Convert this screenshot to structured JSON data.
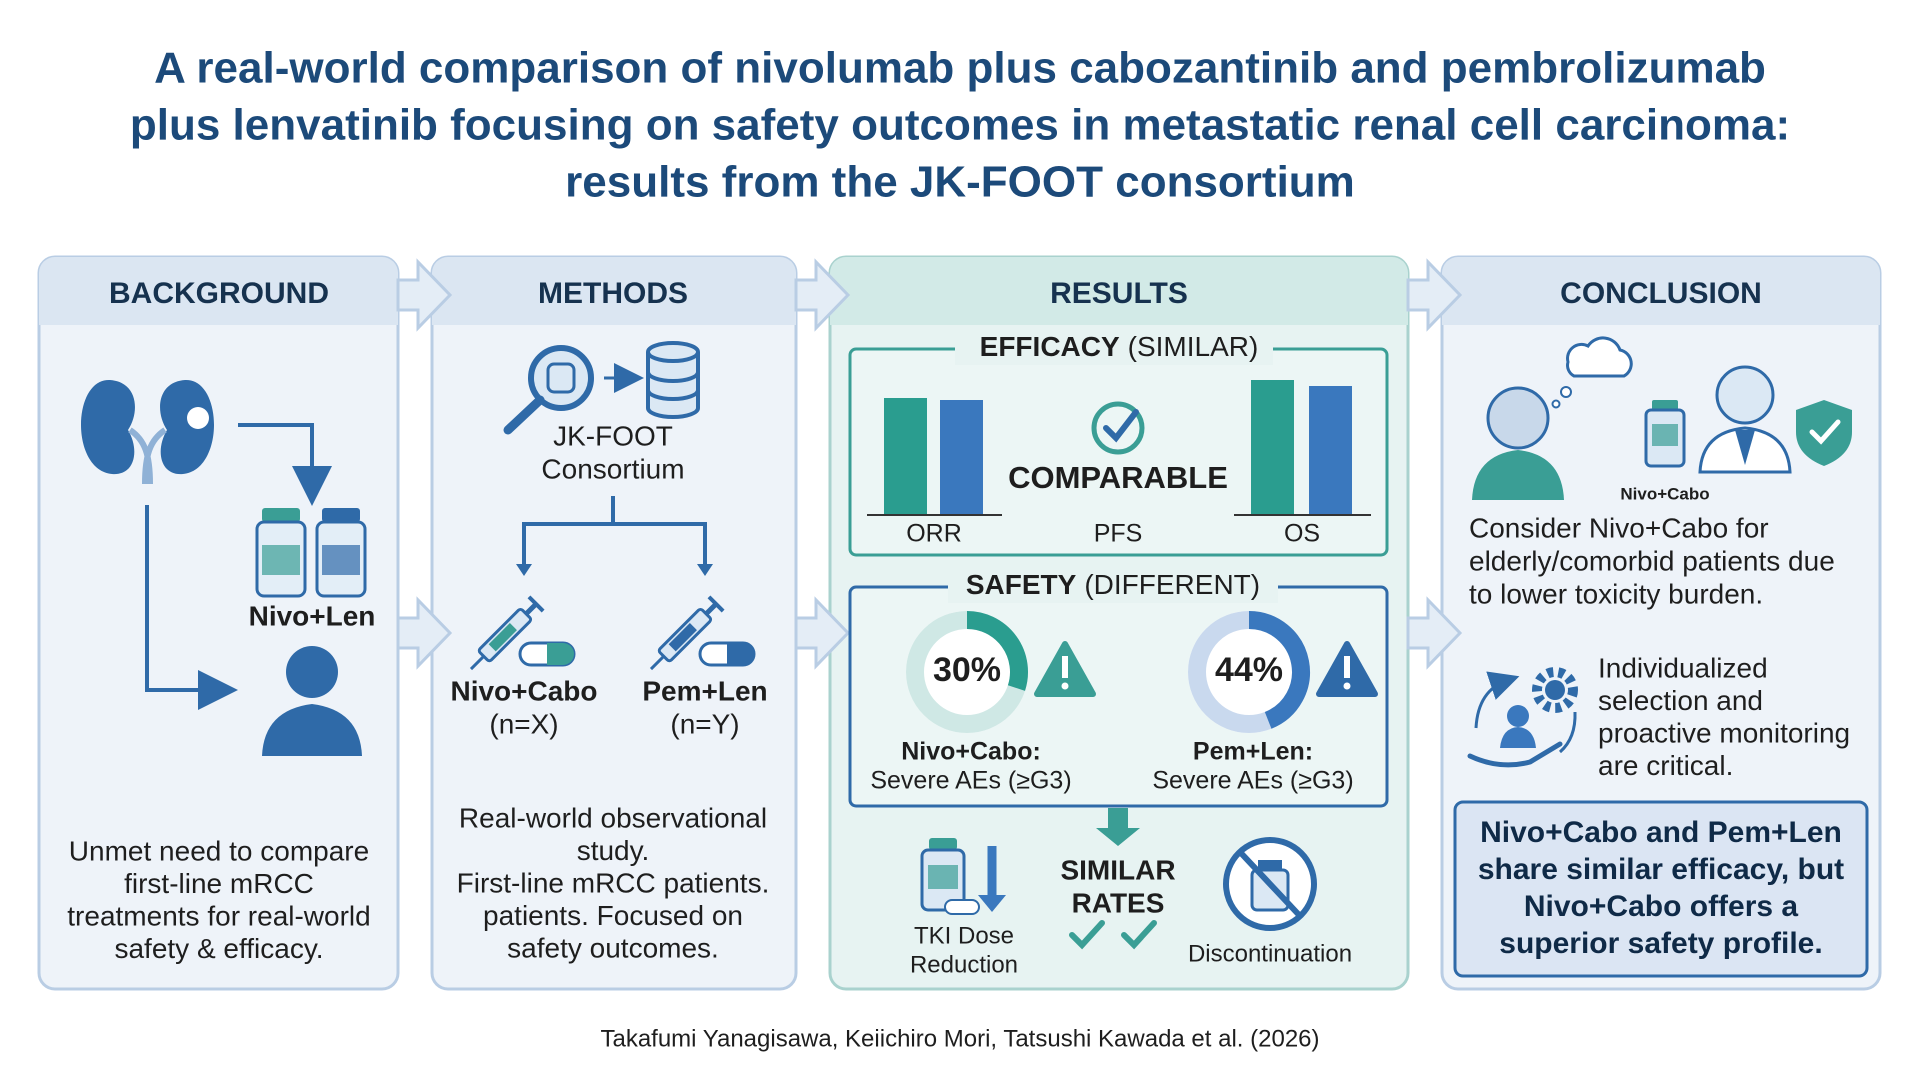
{
  "title": [
    "A real-world comparison of nivolumab plus cabozantinib and pembrolizumab",
    "plus lenvatinib focusing on safety outcomes in metastatic renal cell carcinoma:",
    "results from the JK-FOOT consortium"
  ],
  "panels": {
    "background": {
      "heading": "BACKGROUND",
      "drug_label": "Nivo+Len",
      "text": [
        "Unmet need to compare",
        "first-line mRCC",
        "treatments for real-world",
        "safety & efficacy."
      ]
    },
    "methods": {
      "heading": "METHODS",
      "source": [
        "JK-FOOT",
        "Consortium"
      ],
      "arms": [
        {
          "name": "Nivo+Cabo",
          "n": "(n=X)"
        },
        {
          "name": "Pem+Len",
          "n": "(n=Y)"
        }
      ],
      "text": [
        "Real-world observational",
        "study.",
        "First-line mRCC patients.",
        "patients. Focused on",
        "safety outcomes."
      ]
    },
    "results": {
      "heading": "RESULTS",
      "efficacy": {
        "title": "EFFICACY",
        "qualifier": "(SIMILAR)",
        "verdict": "COMPARABLE",
        "endpoints": [
          "ORR",
          "PFS",
          "OS"
        ]
      },
      "safety": {
        "title": "SAFETY",
        "qualifier": "(DIFFERENT)",
        "arms": [
          {
            "rate": {
              "value": 30,
              "label": "30%"
            },
            "name": "Nivo+Cabo:",
            "outcome": "Severe AEs (≥G3)"
          },
          {
            "rate": {
              "value": 44,
              "label": "44%"
            },
            "name": "Pem+Len:",
            "outcome": "Severe AEs (≥G3)"
          }
        ]
      },
      "other": {
        "dose": [
          "TKI Dose",
          "Reduction"
        ],
        "verdict": [
          "SIMILAR",
          "RATES"
        ],
        "discontinuation": "Discontinuation"
      }
    },
    "conclusion": {
      "heading": "CONCLUSION",
      "icon_label": "Nivo+Cabo",
      "recommendation": [
        "Consider Nivo+Cabo for",
        "elderly/comorbid patients due",
        "to lower toxicity burden."
      ],
      "monitoring": [
        "Individualized",
        "selection and",
        "proactive monitoring",
        "are critical."
      ],
      "summary": [
        "Nivo+Cabo and Pem+Len",
        "share similar efficacy, but",
        "Nivo+Cabo offers a",
        "superior safety profile."
      ]
    }
  },
  "citation": "Takafumi Yanagisawa, Keiichiro Mori, Tatsushi Kawada et al. (2026)"
}
